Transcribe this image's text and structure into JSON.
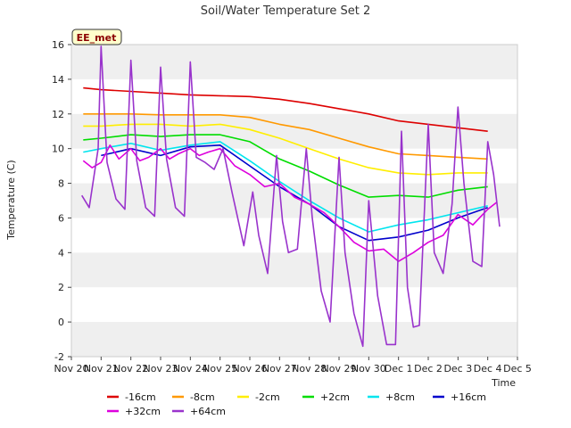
{
  "chart_data": {
    "type": "line",
    "title": "Soil/Water Temperature Set 2",
    "xlabel": "Time",
    "ylabel": "Temperature (C)",
    "site_label": "EE_met",
    "ylim": [
      -2,
      16
    ],
    "yticks": [
      -2,
      0,
      2,
      4,
      6,
      8,
      10,
      12,
      14,
      16
    ],
    "xlim": [
      0,
      15
    ],
    "xticks": [
      0,
      1,
      2,
      3,
      4,
      5,
      6,
      7,
      8,
      9,
      10,
      11,
      12,
      13,
      14,
      15
    ],
    "xtick_labels": [
      "Nov 20",
      "Nov 21",
      "Nov 22",
      "Nov 23",
      "Nov 24",
      "Nov 25",
      "Nov 26",
      "Nov 27",
      "Nov 28",
      "Nov 29",
      "Nov 30",
      "Dec 1",
      "Dec 2",
      "Dec 3",
      "Dec 4",
      "Dec 5"
    ],
    "grid": "horizontal bands",
    "legend_position": "bottom",
    "series": [
      {
        "name": "-16cm",
        "color": "#dd0000",
        "points": [
          [
            0.4,
            13.5
          ],
          [
            1,
            13.4
          ],
          [
            2,
            13.3
          ],
          [
            3,
            13.2
          ],
          [
            4,
            13.1
          ],
          [
            5,
            13.05
          ],
          [
            6,
            13.0
          ],
          [
            7,
            12.85
          ],
          [
            8,
            12.6
          ],
          [
            9,
            12.3
          ],
          [
            10,
            12.0
          ],
          [
            11,
            11.6
          ],
          [
            12,
            11.4
          ],
          [
            13,
            11.2
          ],
          [
            14,
            11.0
          ]
        ]
      },
      {
        "name": "-8cm",
        "color": "#ff9900",
        "points": [
          [
            0.4,
            12.0
          ],
          [
            1,
            12.0
          ],
          [
            2,
            12.0
          ],
          [
            3,
            11.95
          ],
          [
            4,
            11.95
          ],
          [
            5,
            11.95
          ],
          [
            6,
            11.8
          ],
          [
            7,
            11.4
          ],
          [
            8,
            11.1
          ],
          [
            9,
            10.6
          ],
          [
            10,
            10.1
          ],
          [
            11,
            9.7
          ],
          [
            12,
            9.6
          ],
          [
            13,
            9.5
          ],
          [
            14,
            9.4
          ]
        ]
      },
      {
        "name": "-2cm",
        "color": "#ffee00",
        "points": [
          [
            0.4,
            11.3
          ],
          [
            1,
            11.3
          ],
          [
            2,
            11.4
          ],
          [
            3,
            11.4
          ],
          [
            4,
            11.3
          ],
          [
            5,
            11.4
          ],
          [
            6,
            11.1
          ],
          [
            7,
            10.6
          ],
          [
            8,
            10.0
          ],
          [
            9,
            9.4
          ],
          [
            10,
            8.9
          ],
          [
            11,
            8.6
          ],
          [
            12,
            8.5
          ],
          [
            13,
            8.6
          ],
          [
            14,
            8.6
          ]
        ]
      },
      {
        "name": "+2cm",
        "color": "#00dd00",
        "points": [
          [
            0.4,
            10.5
          ],
          [
            1,
            10.6
          ],
          [
            2,
            10.8
          ],
          [
            3,
            10.7
          ],
          [
            4,
            10.8
          ],
          [
            5,
            10.8
          ],
          [
            6,
            10.4
          ],
          [
            7,
            9.4
          ],
          [
            8,
            8.7
          ],
          [
            9,
            7.9
          ],
          [
            10,
            7.2
          ],
          [
            11,
            7.3
          ],
          [
            12,
            7.2
          ],
          [
            13,
            7.6
          ],
          [
            14,
            7.8
          ]
        ]
      },
      {
        "name": "+8cm",
        "color": "#00e5ee",
        "points": [
          [
            0.4,
            9.8
          ],
          [
            1,
            10.0
          ],
          [
            2,
            10.3
          ],
          [
            3,
            9.9
          ],
          [
            4,
            10.2
          ],
          [
            5,
            10.4
          ],
          [
            6,
            9.3
          ],
          [
            7,
            8.1
          ],
          [
            8,
            7.0
          ],
          [
            9,
            6.0
          ],
          [
            10,
            5.2
          ],
          [
            11,
            5.6
          ],
          [
            12,
            5.9
          ],
          [
            13,
            6.3
          ],
          [
            14,
            6.7
          ]
        ]
      },
      {
        "name": "+16cm",
        "color": "#0000cc",
        "points": [
          [
            1,
            9.6
          ],
          [
            2,
            10.0
          ],
          [
            3,
            9.6
          ],
          [
            4,
            10.1
          ],
          [
            5,
            10.2
          ],
          [
            6,
            9.0
          ],
          [
            7,
            7.8
          ],
          [
            8,
            6.8
          ],
          [
            9,
            5.5
          ],
          [
            10,
            4.7
          ],
          [
            11,
            4.9
          ],
          [
            12,
            5.3
          ],
          [
            13,
            6.0
          ],
          [
            14,
            6.6
          ]
        ]
      },
      {
        "name": "+32cm",
        "color": "#dd00dd",
        "points": [
          [
            0.4,
            9.3
          ],
          [
            0.7,
            8.9
          ],
          [
            1,
            9.2
          ],
          [
            1.3,
            10.2
          ],
          [
            1.6,
            9.4
          ],
          [
            2,
            10.0
          ],
          [
            2.3,
            9.3
          ],
          [
            2.6,
            9.5
          ],
          [
            3,
            10.0
          ],
          [
            3.3,
            9.4
          ],
          [
            3.6,
            9.7
          ],
          [
            4,
            10.0
          ],
          [
            4.3,
            9.6
          ],
          [
            4.6,
            9.8
          ],
          [
            5,
            10.0
          ],
          [
            5.5,
            9.0
          ],
          [
            6,
            8.5
          ],
          [
            6.5,
            7.8
          ],
          [
            7,
            8.0
          ],
          [
            7.5,
            7.2
          ],
          [
            8,
            6.8
          ],
          [
            8.5,
            6.3
          ],
          [
            9,
            5.5
          ],
          [
            9.5,
            4.6
          ],
          [
            10,
            4.1
          ],
          [
            10.5,
            4.2
          ],
          [
            11,
            3.5
          ],
          [
            11.5,
            4.0
          ],
          [
            12,
            4.6
          ],
          [
            12.5,
            5.0
          ],
          [
            13,
            6.2
          ],
          [
            13.5,
            5.6
          ],
          [
            14,
            6.5
          ],
          [
            14.3,
            6.9
          ]
        ]
      },
      {
        "name": "+64cm",
        "color": "#9933cc",
        "points": [
          [
            0.35,
            7.3
          ],
          [
            0.6,
            6.6
          ],
          [
            0.9,
            10.0
          ],
          [
            1.0,
            15.9
          ],
          [
            1.2,
            9.2
          ],
          [
            1.5,
            7.1
          ],
          [
            1.8,
            6.5
          ],
          [
            2.0,
            15.1
          ],
          [
            2.2,
            9.3
          ],
          [
            2.5,
            6.6
          ],
          [
            2.8,
            6.1
          ],
          [
            3.0,
            14.7
          ],
          [
            3.2,
            9.4
          ],
          [
            3.5,
            6.6
          ],
          [
            3.8,
            6.1
          ],
          [
            4.0,
            15.0
          ],
          [
            4.2,
            9.5
          ],
          [
            4.5,
            9.2
          ],
          [
            4.8,
            8.8
          ],
          [
            5.1,
            10.0
          ],
          [
            5.4,
            7.5
          ],
          [
            5.8,
            4.4
          ],
          [
            6.1,
            7.5
          ],
          [
            6.3,
            5.0
          ],
          [
            6.6,
            2.8
          ],
          [
            6.9,
            9.6
          ],
          [
            7.1,
            5.8
          ],
          [
            7.3,
            4.0
          ],
          [
            7.6,
            4.2
          ],
          [
            7.9,
            10.0
          ],
          [
            8.1,
            6.0
          ],
          [
            8.4,
            1.8
          ],
          [
            8.7,
            0.0
          ],
          [
            9.0,
            9.5
          ],
          [
            9.2,
            4.0
          ],
          [
            9.5,
            0.5
          ],
          [
            9.8,
            -1.4
          ],
          [
            10.0,
            7.0
          ],
          [
            10.3,
            1.5
          ],
          [
            10.6,
            -1.3
          ],
          [
            10.9,
            -1.3
          ],
          [
            11.1,
            11.0
          ],
          [
            11.3,
            2.0
          ],
          [
            11.5,
            -0.3
          ],
          [
            11.7,
            -0.2
          ],
          [
            12.0,
            11.4
          ],
          [
            12.2,
            4.0
          ],
          [
            12.5,
            2.8
          ],
          [
            12.8,
            6.8
          ],
          [
            13.0,
            12.4
          ],
          [
            13.2,
            8.0
          ],
          [
            13.5,
            3.5
          ],
          [
            13.8,
            3.2
          ],
          [
            14.0,
            10.4
          ],
          [
            14.2,
            8.5
          ],
          [
            14.4,
            5.5
          ]
        ]
      }
    ]
  }
}
